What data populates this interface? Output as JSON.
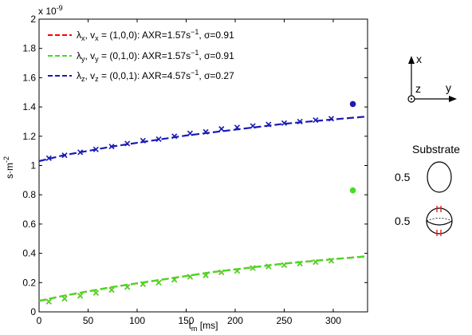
{
  "chart_data": {
    "type": "line",
    "y_exponent_label": "x 10",
    "y_exponent_power": "-9",
    "xlabel_main": "t",
    "xlabel_sub": "m",
    "xlabel_unit": "[ms]",
    "ylabel": "s·m",
    "ylabel_power": "-2",
    "xlim": [
      0,
      335
    ],
    "ylim": [
      0,
      2
    ],
    "y_scale": 1e-09,
    "x_ticks": [
      0,
      50,
      100,
      150,
      200,
      250,
      300
    ],
    "y_ticks": [
      0,
      0.2,
      0.4,
      0.6,
      0.8,
      1,
      1.2,
      1.4,
      1.6,
      1.8,
      2
    ],
    "x_tick_labels": [
      "0",
      "50",
      "100",
      "150",
      "200",
      "250",
      "300"
    ],
    "y_tick_labels": [
      "0",
      "0.2",
      "0.4",
      "0.6",
      "0.8",
      "1",
      "1.2",
      "1.4",
      "1.6",
      "1.8",
      "2"
    ],
    "grid": false,
    "legend_position": "top-left",
    "series": [
      {
        "name": "λx, vx = (1,0,0): AXR=1.57s−1, σ=0.91",
        "color": "#ff0000",
        "marker_x": [
          10,
          26,
          42,
          58,
          74,
          90,
          106,
          122,
          138,
          154,
          170,
          186,
          202,
          218,
          234,
          250,
          266,
          282,
          298
        ],
        "marker_y": [
          0.07,
          0.09,
          0.11,
          0.13,
          0.15,
          0.17,
          0.19,
          0.2,
          0.22,
          0.24,
          0.25,
          0.27,
          0.28,
          0.3,
          0.31,
          0.32,
          0.33,
          0.34,
          0.35
        ],
        "fit_x": [
          0,
          25,
          50,
          75,
          100,
          125,
          150,
          175,
          200,
          225,
          250,
          275,
          300,
          335
        ],
        "fit_y": [
          0.075,
          0.11,
          0.14,
          0.17,
          0.195,
          0.22,
          0.245,
          0.27,
          0.29,
          0.31,
          0.33,
          0.345,
          0.36,
          0.38
        ],
        "extra_point": null
      },
      {
        "name": "λy, vy = (0,1,0): AXR=1.57s−1, σ=0.91",
        "color": "#44dd22",
        "marker_x": [
          10,
          26,
          42,
          58,
          74,
          90,
          106,
          122,
          138,
          154,
          170,
          186,
          202,
          218,
          234,
          250,
          266,
          282,
          298
        ],
        "marker_y": [
          0.07,
          0.09,
          0.11,
          0.13,
          0.15,
          0.17,
          0.19,
          0.2,
          0.22,
          0.24,
          0.25,
          0.27,
          0.28,
          0.3,
          0.31,
          0.32,
          0.33,
          0.34,
          0.35
        ],
        "fit_x": [
          0,
          25,
          50,
          75,
          100,
          125,
          150,
          175,
          200,
          225,
          250,
          275,
          300,
          335
        ],
        "fit_y": [
          0.075,
          0.11,
          0.14,
          0.17,
          0.195,
          0.22,
          0.245,
          0.27,
          0.29,
          0.31,
          0.33,
          0.345,
          0.36,
          0.38
        ],
        "extra_point": [
          320,
          0.83
        ]
      },
      {
        "name": "λz, vz = (0,0,1): AXR=4.57s−1, σ=0.27",
        "color": "#1a1ab5",
        "marker_x": [
          10,
          26,
          42,
          58,
          74,
          90,
          106,
          122,
          138,
          154,
          170,
          186,
          202,
          218,
          234,
          250,
          266,
          282,
          298
        ],
        "marker_y": [
          1.05,
          1.07,
          1.09,
          1.11,
          1.13,
          1.15,
          1.17,
          1.18,
          1.2,
          1.22,
          1.23,
          1.25,
          1.26,
          1.27,
          1.28,
          1.29,
          1.3,
          1.31,
          1.32
        ],
        "fit_x": [
          0,
          25,
          50,
          75,
          100,
          125,
          150,
          175,
          200,
          225,
          250,
          275,
          300,
          335
        ],
        "fit_y": [
          1.03,
          1.07,
          1.1,
          1.13,
          1.155,
          1.18,
          1.205,
          1.225,
          1.245,
          1.265,
          1.285,
          1.3,
          1.315,
          1.335
        ],
        "extra_point": [
          320,
          1.42
        ]
      }
    ]
  },
  "legend": {
    "items": [
      {
        "lam": "λ",
        "lam_sub": "x",
        "v": ", v",
        "v_sub": "x",
        "rest": " = (1,0,0): AXR=1.57s",
        "sup": "−1",
        "tail": ", σ=0.91"
      },
      {
        "lam": "λ",
        "lam_sub": "y",
        "v": ", v",
        "v_sub": "y",
        "rest": " = (0,1,0): AXR=1.57s",
        "sup": "−1",
        "tail": ", σ=0.91"
      },
      {
        "lam": "λ",
        "lam_sub": "z",
        "v": ", v",
        "v_sub": "z",
        "rest": " = (0,0,1): AXR=4.57s",
        "sup": "−1",
        "tail": ", σ=0.27"
      }
    ]
  },
  "axes_icon": {
    "x_label": "x",
    "y_label": "y",
    "z_label": "z"
  },
  "substrate": {
    "title": "Substrate",
    "items": [
      {
        "value": "0.5",
        "shape": "ellipsoid-icon"
      },
      {
        "value": "0.5",
        "shape": "sphere-with-stripes-icon"
      }
    ]
  }
}
